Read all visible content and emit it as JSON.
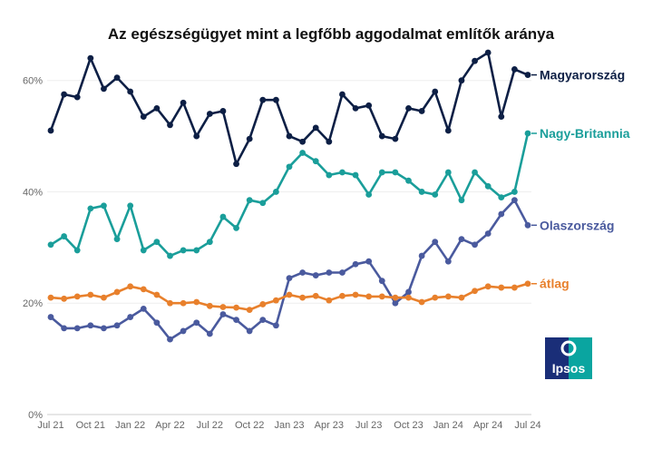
{
  "chart_data": {
    "type": "line",
    "title": "Az egészségügyet mint a legfőbb aggodalmat említők aránya",
    "xlabel": "",
    "ylabel": "",
    "ylim": [
      0,
      65
    ],
    "y_ticks": [
      0,
      20,
      40,
      60
    ],
    "y_tick_labels": [
      "0%",
      "20%",
      "40%",
      "60%"
    ],
    "x_tick_labels": [
      "Jul 21",
      "Oct 21",
      "Jan 22",
      "Apr 22",
      "Jul 22",
      "Oct 22",
      "Jan 23",
      "Apr 23",
      "Jul 23",
      "Oct 23",
      "Jan 24",
      "Apr 24",
      "Jul 24"
    ],
    "x_tick_positions": [
      0,
      3,
      6,
      9,
      12,
      15,
      18,
      21,
      24,
      27,
      30,
      33,
      36
    ],
    "grid": "horizontal",
    "x": [
      "Jul 21",
      "Aug 21",
      "Sep 21",
      "Oct 21",
      "Nov 21",
      "Dec 21",
      "Jan 22",
      "Feb 22",
      "Mar 22",
      "Apr 22",
      "May 22",
      "Jun 22",
      "Jul 22",
      "Aug 22",
      "Sep 22",
      "Oct 22",
      "Nov 22",
      "Dec 22",
      "Jan 23",
      "Feb 23",
      "Mar 23",
      "Apr 23",
      "May 23",
      "Jun 23",
      "Jul 23",
      "Aug 23",
      "Sep 23",
      "Oct 23",
      "Nov 23",
      "Dec 23",
      "Jan 24",
      "Feb 24",
      "Mar 24",
      "Apr 24",
      "May 24",
      "Jun 24",
      "Jul 24"
    ],
    "series": [
      {
        "name": "Magyarország",
        "color": "#0d1f45",
        "values": [
          51,
          57.5,
          57,
          64,
          58.5,
          60.5,
          58,
          53.5,
          55,
          52,
          56,
          50,
          54,
          54.5,
          45,
          49.5,
          56.5,
          56.5,
          50,
          49,
          51.5,
          49,
          57.5,
          55,
          55.5,
          50,
          49.5,
          55,
          54.5,
          58,
          51,
          60,
          63.5,
          65,
          53.5,
          62,
          61
        ]
      },
      {
        "name": "Nagy-Britannia",
        "color": "#1a9e9a",
        "values": [
          30.5,
          32,
          29.5,
          37,
          37.5,
          31.5,
          37.5,
          29.5,
          31,
          28.5,
          29.5,
          29.5,
          31,
          35.5,
          33.5,
          38.5,
          38,
          40,
          44.5,
          47,
          45.5,
          43,
          43.5,
          43,
          39.5,
          43.5,
          43.5,
          42,
          40,
          39.5,
          43.5,
          38.5,
          43.5,
          41,
          39,
          40,
          50.5
        ]
      },
      {
        "name": "Olaszország",
        "color": "#4a5a9e",
        "values": [
          17.5,
          15.5,
          15.5,
          16,
          15.5,
          16,
          17.5,
          19,
          16.5,
          13.5,
          15,
          16.5,
          14.5,
          18,
          17,
          15,
          17,
          16,
          24.5,
          25.5,
          25,
          25.5,
          25.5,
          27,
          27.5,
          24,
          20,
          22,
          28.5,
          31,
          27.5,
          31.5,
          30.5,
          32.5,
          36,
          38.5,
          34
        ]
      },
      {
        "name": "átlag",
        "color": "#e8802c",
        "values": [
          21,
          20.8,
          21.2,
          21.5,
          21,
          22,
          23,
          22.5,
          21.5,
          20,
          20,
          20.2,
          19.5,
          19.3,
          19.2,
          18.8,
          19.8,
          20.5,
          21.5,
          21,
          21.3,
          20.5,
          21.3,
          21.5,
          21.2,
          21.2,
          21,
          21,
          20.2,
          21,
          21.2,
          21,
          22.2,
          23,
          22.8,
          22.8,
          23.5
        ]
      }
    ]
  },
  "logo": {
    "text": "Ipsos",
    "background": "#0aa5a0",
    "accent": "#1a2e78"
  }
}
